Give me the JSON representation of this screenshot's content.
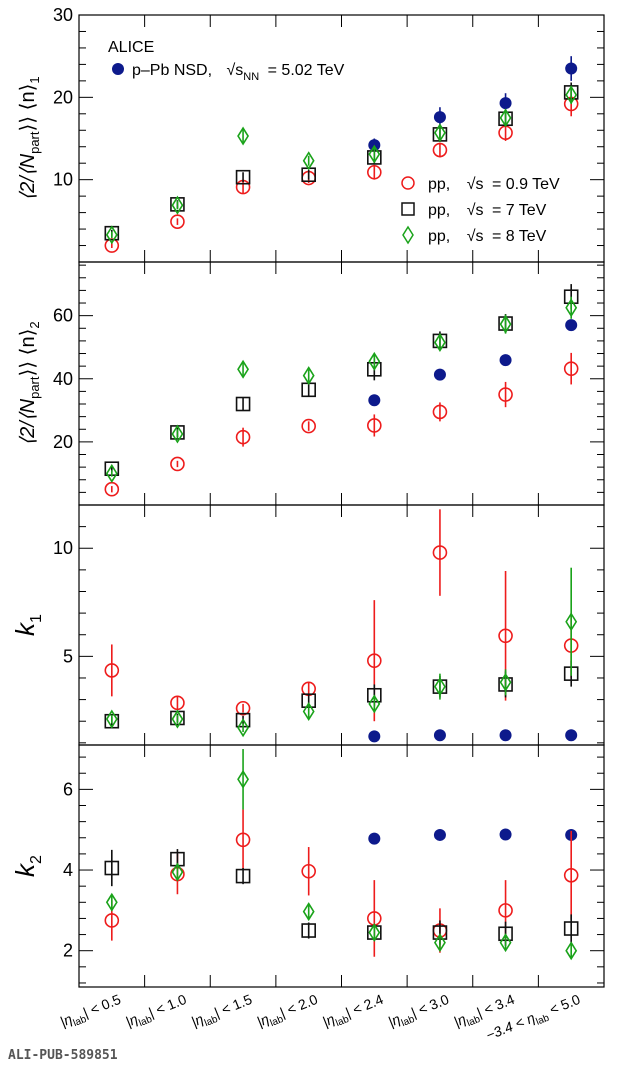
{
  "footer": {
    "id": "ALI-PUB-589851"
  },
  "legend": {
    "experiment": "ALICE",
    "ppb_label": "p–Pb NSD,",
    "ppb_energy": "= 5.02 TeV",
    "ppb_sqrt": "√s",
    "ppb_sub": "NN",
    "pp_prefix": "pp,",
    "pp_sqrt": "√s",
    "pp_09": "= 0.9 TeV",
    "pp_7": "= 7 TeV",
    "pp_8": "= 8 TeV"
  },
  "colors": {
    "ppb": "#0d1a8c",
    "pp09": "#ee1c1c",
    "pp7": "#111111",
    "pp8": "#1aa31a"
  },
  "categories": [
    {
      "main": "|η",
      "sub": "lab",
      "rest": "| < 0.5"
    },
    {
      "main": "|η",
      "sub": "lab",
      "rest": "| < 1.0"
    },
    {
      "main": "|η",
      "sub": "lab",
      "rest": "| < 1.5"
    },
    {
      "main": "|η",
      "sub": "lab",
      "rest": "| < 2.0"
    },
    {
      "main": "|η",
      "sub": "lab",
      "rest": "| < 2.4"
    },
    {
      "main": "|η",
      "sub": "lab",
      "rest": "| < 3.0"
    },
    {
      "main": "|η",
      "sub": "lab",
      "rest": "| < 3.4"
    },
    {
      "main": "−3.4 < η",
      "sub": "lab",
      "rest": " < 5.0"
    }
  ],
  "chart_data": [
    {
      "type": "scatter",
      "ylabel": {
        "pre": "⟨2/⟨N",
        "sub": "part",
        "post": "⟩⟩ ⟨n⟩",
        "idx": "1"
      },
      "ylim": [
        0,
        30
      ],
      "yticks": [
        10,
        20,
        30
      ],
      "series": [
        {
          "name": "ppb",
          "values": [
            null,
            null,
            null,
            null,
            14.2,
            17.6,
            19.3,
            23.5
          ],
          "errors": [
            null,
            null,
            null,
            null,
            0.8,
            1.2,
            1.2,
            1.5
          ]
        },
        {
          "name": "pp09",
          "values": [
            2.0,
            4.9,
            9.1,
            10.2,
            10.9,
            13.6,
            15.7,
            19.2
          ],
          "errors": [
            0.3,
            0.4,
            0.8,
            0.6,
            0.9,
            0.9,
            1.0,
            1.5
          ]
        },
        {
          "name": "pp7",
          "values": [
            3.5,
            7.0,
            10.3,
            10.6,
            12.7,
            15.5,
            17.4,
            20.6
          ],
          "errors": [
            0.4,
            0.5,
            0.6,
            0.6,
            0.8,
            0.9,
            0.9,
            1.2
          ]
        },
        {
          "name": "pp8",
          "values": [
            3.3,
            6.9,
            15.3,
            12.3,
            13.1,
            15.7,
            17.5,
            20.3
          ],
          "errors": [
            0.4,
            0.5,
            0.8,
            0.6,
            0.8,
            0.9,
            0.9,
            1.1
          ]
        }
      ]
    },
    {
      "type": "scatter",
      "ylabel": {
        "pre": "⟨2/⟨N",
        "sub": "part",
        "post": "⟩⟩ ⟨n⟩",
        "idx": "2"
      },
      "ylim": [
        0,
        77
      ],
      "yticks": [
        20,
        40,
        60
      ],
      "series": [
        {
          "name": "ppb",
          "values": [
            null,
            null,
            null,
            null,
            33.2,
            41.3,
            45.9,
            57.0
          ],
          "errors": [
            null,
            null,
            null,
            null,
            1.5,
            1.5,
            1.5,
            1.5
          ]
        },
        {
          "name": "pp09",
          "values": [
            5.0,
            13.0,
            21.5,
            25.0,
            25.2,
            29.5,
            35.0,
            43.2
          ],
          "errors": [
            1.0,
            1.0,
            3.0,
            1.5,
            3.5,
            3.0,
            4.0,
            5.0
          ]
        },
        {
          "name": "pp7",
          "values": [
            11.5,
            23.0,
            32.0,
            36.5,
            43.0,
            52.0,
            57.5,
            66.0
          ],
          "errors": [
            1.0,
            1.5,
            2.0,
            2.0,
            3.5,
            3.0,
            3.0,
            4.0
          ]
        },
        {
          "name": "pp8",
          "values": [
            10.0,
            22.5,
            43.0,
            41.0,
            45.5,
            51.5,
            57.3,
            62.5
          ],
          "errors": [
            1.0,
            1.5,
            2.0,
            2.0,
            2.5,
            2.5,
            3.0,
            3.5
          ]
        }
      ]
    },
    {
      "type": "scatter",
      "ylabel": {
        "pre": "k",
        "sub": "",
        "post": "",
        "idx": "1"
      },
      "ylim": [
        0.9,
        12
      ],
      "yticks": [
        5,
        10
      ],
      "series": [
        {
          "name": "ppb",
          "values": [
            null,
            null,
            null,
            null,
            1.3,
            1.35,
            1.35,
            1.35
          ],
          "errors": [
            null,
            null,
            null,
            null,
            0.1,
            0.1,
            0.1,
            0.1
          ]
        },
        {
          "name": "pp09",
          "values": [
            4.35,
            2.85,
            2.6,
            3.5,
            4.8,
            9.8,
            5.95,
            5.5
          ],
          "errors": [
            1.2,
            0.3,
            0.2,
            0.3,
            2.8,
            2.0,
            3.0,
            1.5
          ]
        },
        {
          "name": "pp7",
          "values": [
            2.0,
            2.15,
            2.05,
            2.95,
            3.2,
            3.6,
            3.7,
            4.2
          ],
          "errors": [
            0.2,
            0.2,
            0.2,
            0.3,
            0.5,
            0.5,
            0.6,
            0.6
          ]
        },
        {
          "name": "pp8",
          "values": [
            2.1,
            2.1,
            1.7,
            2.45,
            2.8,
            3.6,
            3.8,
            6.6
          ],
          "errors": [
            0.2,
            0.2,
            0.2,
            0.3,
            0.4,
            0.6,
            0.6,
            2.5
          ]
        }
      ]
    },
    {
      "type": "scatter",
      "ylabel": {
        "pre": "k",
        "sub": "",
        "post": "",
        "idx": "2"
      },
      "ylim": [
        1.1,
        7.1
      ],
      "yticks": [
        2,
        4,
        6
      ],
      "series": [
        {
          "name": "ppb",
          "values": [
            null,
            null,
            null,
            null,
            4.78,
            4.87,
            4.88,
            4.87
          ],
          "errors": [
            null,
            null,
            null,
            null,
            0.1,
            0.1,
            0.1,
            0.1
          ]
        },
        {
          "name": "pp09",
          "values": [
            2.75,
            3.9,
            4.75,
            3.97,
            2.8,
            2.5,
            3.0,
            3.87
          ],
          "errors": [
            0.5,
            0.5,
            0.75,
            0.6,
            0.95,
            0.55,
            0.75,
            1.1
          ]
        },
        {
          "name": "pp7",
          "values": [
            4.05,
            4.27,
            3.85,
            2.5,
            2.45,
            2.45,
            2.42,
            2.55
          ],
          "errors": [
            0.45,
            0.25,
            0.2,
            0.2,
            0.2,
            0.3,
            0.3,
            0.35
          ]
        },
        {
          "name": "pp8",
          "values": [
            3.2,
            3.95,
            6.25,
            2.97,
            2.45,
            2.2,
            2.2,
            2.0
          ],
          "errors": [
            0.2,
            0.2,
            0.75,
            0.2,
            0.2,
            0.2,
            0.2,
            0.2
          ]
        }
      ]
    }
  ]
}
